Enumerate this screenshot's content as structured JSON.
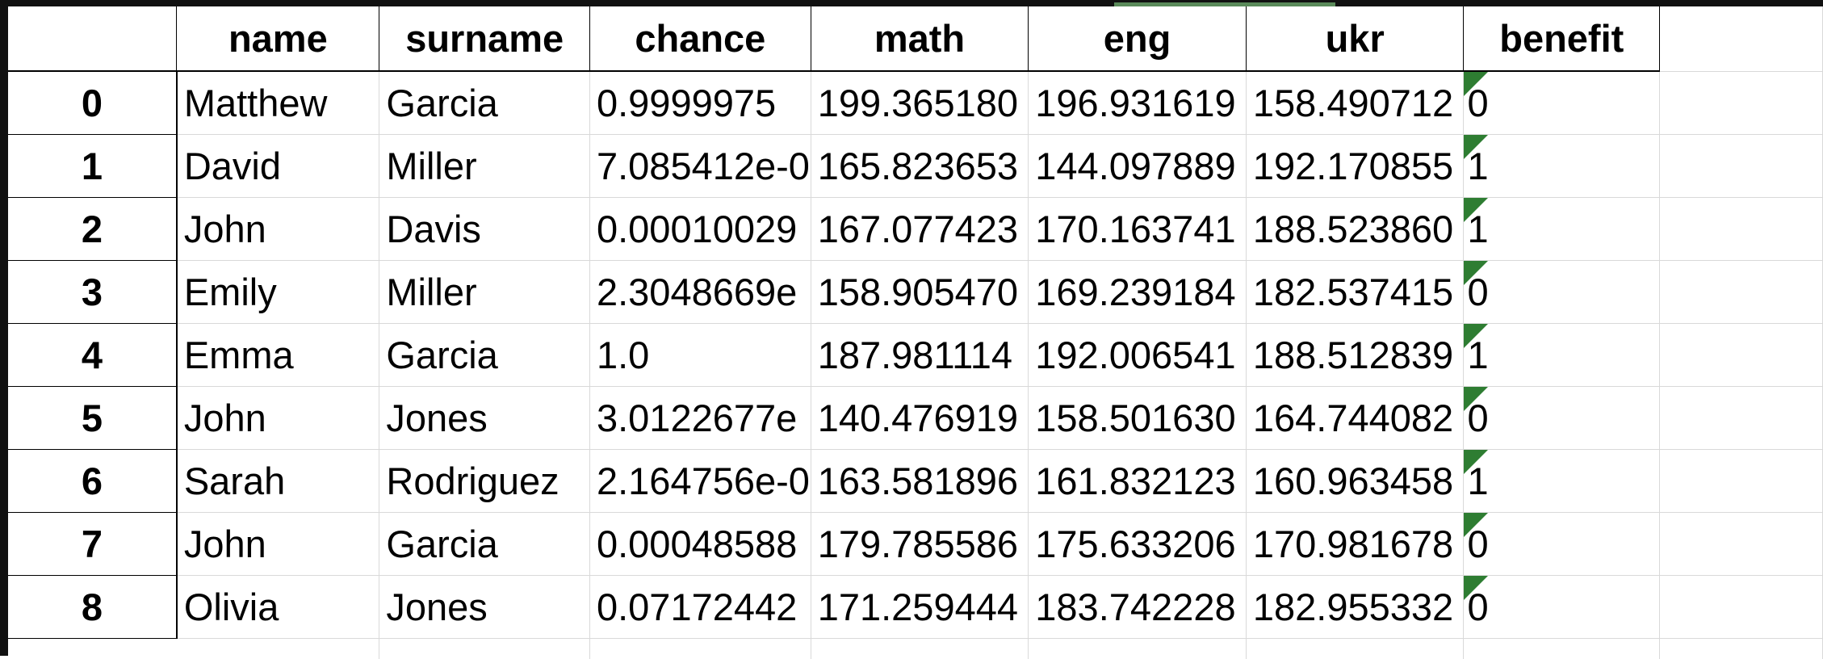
{
  "table": {
    "columns": [
      "name",
      "surname",
      "chance",
      "math",
      "eng",
      "ukr",
      "benefit"
    ],
    "rows": [
      {
        "index": "0",
        "name": "Matthew",
        "surname": "Garcia",
        "chance": "0.9999975",
        "math": "199.365180",
        "eng": "196.931619",
        "ukr": "158.490712",
        "benefit": "0"
      },
      {
        "index": "1",
        "name": "David",
        "surname": "Miller",
        "chance": "7.085412e-0",
        "math": "165.823653",
        "eng": "144.097889",
        "ukr": "192.170855",
        "benefit": "1"
      },
      {
        "index": "2",
        "name": "John",
        "surname": "Davis",
        "chance": "0.00010029",
        "math": "167.077423",
        "eng": "170.163741",
        "ukr": "188.523860",
        "benefit": "1"
      },
      {
        "index": "3",
        "name": "Emily",
        "surname": "Miller",
        "chance": "2.3048669e",
        "math": "158.905470",
        "eng": "169.239184",
        "ukr": "182.537415",
        "benefit": "0"
      },
      {
        "index": "4",
        "name": "Emma",
        "surname": "Garcia",
        "chance": "1.0",
        "math": "187.981114",
        "eng": "192.006541",
        "ukr": "188.512839",
        "benefit": "1"
      },
      {
        "index": "5",
        "name": "John",
        "surname": "Jones",
        "chance": "3.0122677e",
        "math": "140.476919",
        "eng": "158.501630",
        "ukr": "164.744082",
        "benefit": "0"
      },
      {
        "index": "6",
        "name": "Sarah",
        "surname": "Rodriguez",
        "chance": "2.164756e-0",
        "math": "163.581896",
        "eng": "161.832123",
        "ukr": "160.963458",
        "benefit": "1"
      },
      {
        "index": "7",
        "name": "John",
        "surname": "Garcia",
        "chance": "0.00048588",
        "math": "179.785586",
        "eng": "175.633206",
        "ukr": "170.981678",
        "benefit": "0"
      },
      {
        "index": "8",
        "name": "Olivia",
        "surname": "Jones",
        "chance": "0.07172442",
        "math": "171.259444",
        "eng": "183.742228",
        "ukr": "182.955332",
        "benefit": "0"
      }
    ]
  },
  "colors": {
    "header_border": "#000000",
    "grid_line": "#d9d9d9",
    "number_as_text_flag": "#2e7d32"
  }
}
